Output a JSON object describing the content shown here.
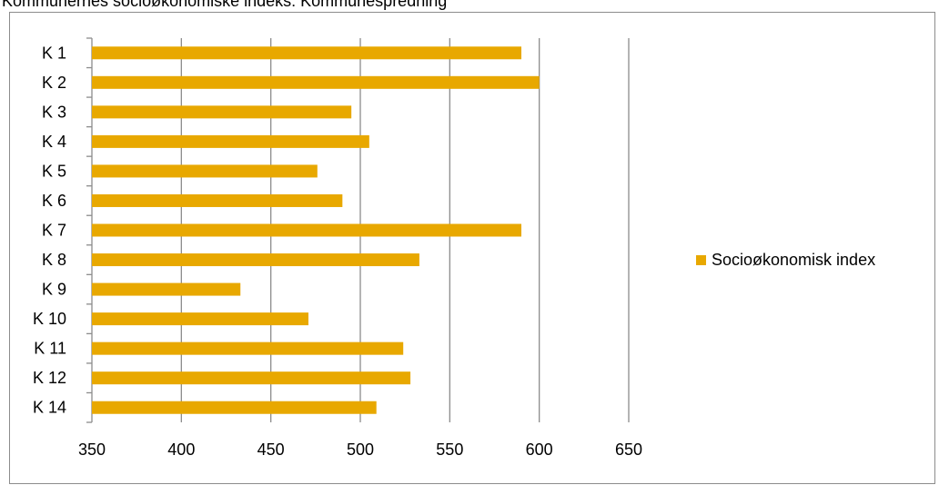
{
  "title": "Kommunernes socioøkonomiske indeks: Kommunespredning",
  "chart_data": {
    "type": "bar",
    "orientation": "horizontal",
    "title": "Kommunernes socioøkonomiske indeks: Kommunespredning",
    "xlabel": "",
    "ylabel": "",
    "categories": [
      "K 1",
      "K 2",
      "K 3",
      "K 4",
      "K 5",
      "K 6",
      "K 7",
      "K 8",
      "K 9",
      "K 10",
      "K 11",
      "K 12",
      "K 14"
    ],
    "series": [
      {
        "name": "Socioøkonomisk index",
        "color": "#E8A800",
        "values": [
          590,
          600,
          495,
          505,
          476,
          490,
          590,
          533,
          433,
          471,
          524,
          528,
          509
        ]
      }
    ],
    "xlim": [
      350,
      650
    ],
    "xticks": [
      350,
      400,
      450,
      500,
      550,
      600,
      650
    ],
    "grid": "vertical",
    "legend_position": "right"
  }
}
